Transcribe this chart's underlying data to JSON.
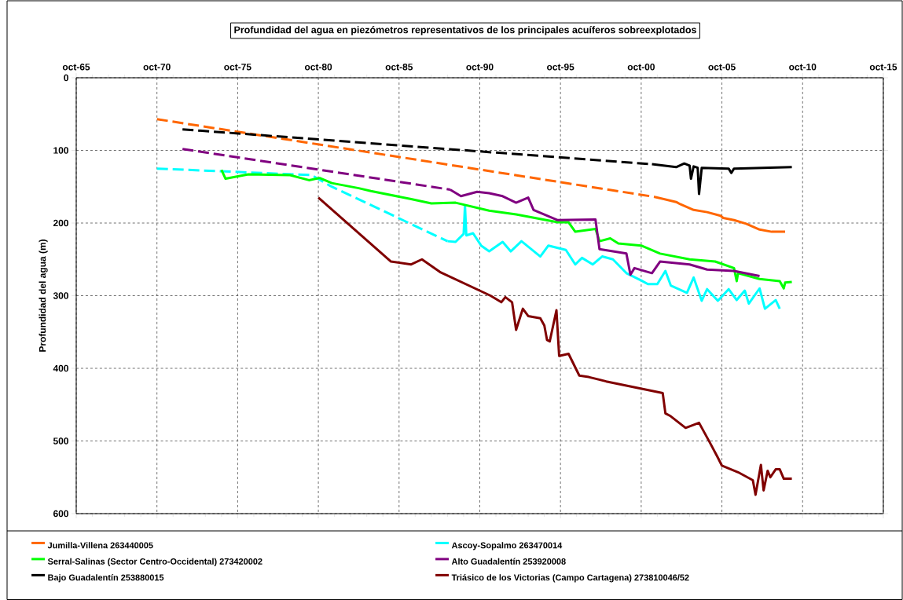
{
  "chart_data": {
    "type": "line",
    "title": "Profundidad del agua en piezómetros representativos de los principales acuíferos sobreexplotados",
    "ylabel": "Profundidad del agua (m)",
    "xlim": [
      "1965-10",
      "2015-10"
    ],
    "ylim": [
      600,
      0
    ],
    "xticks": [
      {
        "value": "1965-10",
        "label": "oct-65"
      },
      {
        "value": "1966-10",
        "label": null
      },
      {
        "value": "1967-10",
        "label": null
      },
      {
        "value": "1968-10",
        "label": null
      },
      {
        "value": "1969-10",
        "label": null
      },
      {
        "value": "1970-10",
        "label": "oct-70"
      },
      {
        "value": "1971-10",
        "label": null
      },
      {
        "value": "1972-10",
        "label": null
      },
      {
        "value": "1973-10",
        "label": null
      },
      {
        "value": "1974-10",
        "label": null
      },
      {
        "value": "1975-10",
        "label": "oct-75"
      },
      {
        "value": "1976-10",
        "label": null
      },
      {
        "value": "1977-10",
        "label": null
      },
      {
        "value": "1978-10",
        "label": null
      },
      {
        "value": "1979-10",
        "label": null
      },
      {
        "value": "1980-10",
        "label": "oct-80"
      },
      {
        "value": "1981-10",
        "label": null
      },
      {
        "value": "1982-10",
        "label": null
      },
      {
        "value": "1983-10",
        "label": null
      },
      {
        "value": "1984-10",
        "label": null
      },
      {
        "value": "1985-10",
        "label": "oct-85"
      },
      {
        "value": "1986-10",
        "label": null
      },
      {
        "value": "1987-10",
        "label": null
      },
      {
        "value": "1988-10",
        "label": null
      },
      {
        "value": "1989-10",
        "label": null
      },
      {
        "value": "1990-10",
        "label": "oct-90"
      },
      {
        "value": "1991-10",
        "label": null
      },
      {
        "value": "1992-10",
        "label": null
      },
      {
        "value": "1993-10",
        "label": null
      },
      {
        "value": "1994-10",
        "label": null
      },
      {
        "value": "1995-10",
        "label": "oct-95"
      },
      {
        "value": "1996-10",
        "label": null
      },
      {
        "value": "1997-10",
        "label": null
      },
      {
        "value": "1998-10",
        "label": null
      },
      {
        "value": "1999-10",
        "label": null
      },
      {
        "value": "2000-10",
        "label": "oct-00"
      },
      {
        "value": "2001-10",
        "label": null
      },
      {
        "value": "2002-10",
        "label": null
      },
      {
        "value": "2003-10",
        "label": null
      },
      {
        "value": "2004-10",
        "label": null
      },
      {
        "value": "2005-10",
        "label": "oct-05"
      },
      {
        "value": "2006-10",
        "label": null
      },
      {
        "value": "2007-10",
        "label": null
      },
      {
        "value": "2008-10",
        "label": null
      },
      {
        "value": "2009-10",
        "label": null
      },
      {
        "value": "2010-10",
        "label": "oct-10"
      },
      {
        "value": "2011-10",
        "label": null
      },
      {
        "value": "2012-10",
        "label": null
      },
      {
        "value": "2013-10",
        "label": null
      },
      {
        "value": "2014-10",
        "label": null
      },
      {
        "value": "2015-10",
        "label": "oct-15"
      }
    ],
    "yticks": [
      0,
      100,
      200,
      300,
      400,
      500,
      600
    ],
    "grid": true,
    "legend": "bottom",
    "series": [
      {
        "name": "Jumilla-Villena 263440005",
        "color": "#ff6600",
        "x": [
          "2001-08",
          "2002-12",
          "2003-03",
          "2004-01",
          "2004-11",
          "2005-09",
          "2005-11",
          "2006-07",
          "2007-04",
          "2008-02",
          "2008-11",
          "2009-09"
        ],
        "values": [
          164,
          171,
          174,
          182,
          185,
          190,
          193,
          196,
          201,
          209,
          212,
          212
        ]
      },
      {
        "name": "Ascoy-Sopalmo 263470014",
        "color": "#00ffff",
        "x": [
          "1988-10",
          "1989-04",
          "1989-10",
          "1989-11",
          "1989-12",
          "1990-05",
          "1990-11",
          "1991-05",
          "1992-03",
          "1992-09",
          "1993-05",
          "1994-07",
          "1995-01",
          "1996-02",
          "1996-09",
          "1997-02",
          "1997-10",
          "1998-05",
          "1999-01",
          "1999-11",
          "2000-10",
          "2001-03",
          "2001-10",
          "2002-04",
          "2002-08",
          "2003-08",
          "2004-01",
          "2004-07",
          "2004-11",
          "2005-07",
          "2006-03",
          "2006-09",
          "2007-03",
          "2007-06",
          "2008-02",
          "2008-06",
          "2009-02",
          "2009-05"
        ],
        "values": [
          225,
          226,
          215,
          176,
          217,
          214,
          231,
          239,
          226,
          239,
          225,
          246,
          231,
          237,
          257,
          248,
          257,
          246,
          250,
          269,
          279,
          284,
          284,
          266,
          286,
          296,
          275,
          307,
          291,
          307,
          291,
          306,
          293,
          311,
          290,
          318,
          306,
          318
        ]
      },
      {
        "name": "Serral-Salinas (Sector Centro-Occidental) 273420002",
        "color": "#00ff00",
        "x": [
          "1974-10",
          "1975-01",
          "1976-06",
          "1979-01",
          "1980-03",
          "1980-11",
          "1981-08",
          "1983-04",
          "1984-01",
          "1986-07",
          "1987-10",
          "1989-04",
          "1991-05",
          "1993-01",
          "1995-08",
          "1996-04",
          "1996-09",
          "1997-12",
          "1998-03",
          "1998-11",
          "1999-05",
          "2000-10",
          "2001-12",
          "2003-10",
          "2005-05",
          "2006-07",
          "2006-09",
          "2006-10",
          "2008-02",
          "2009-05",
          "2009-08",
          "2009-09",
          "2010-02"
        ],
        "values": [
          127,
          139,
          133,
          134,
          141,
          138,
          145,
          152,
          156,
          167,
          173,
          172,
          183,
          188,
          199,
          199,
          212,
          208,
          225,
          221,
          228,
          231,
          242,
          250,
          253,
          262,
          280,
          269,
          277,
          280,
          290,
          282,
          281
        ]
      },
      {
        "name": "Alto Guadalentín 253920008",
        "color": "#800080",
        "x": [
          "1988-12",
          "1989-08",
          "1990-08",
          "1991-05",
          "1992-03",
          "1993-01",
          "1993-10",
          "1994-02",
          "1995-08",
          "1997-12",
          "1998-03",
          "1999-01",
          "1999-11",
          "2000-02",
          "2000-05",
          "2001-06",
          "2001-12",
          "2003-10",
          "2004-11",
          "2006-07",
          "2008-02"
        ],
        "values": [
          154,
          163,
          157,
          159,
          163,
          172,
          165,
          182,
          196,
          195,
          236,
          239,
          242,
          271,
          262,
          269,
          253,
          257,
          264,
          266,
          273
        ]
      },
      {
        "name": "Bajo Guadalentín 253880015",
        "color": "#000000",
        "x": [
          "2001-06",
          "2002-12",
          "2003-06",
          "2003-10",
          "2003-11",
          "2004-01",
          "2004-04",
          "2004-05",
          "2004-07",
          "2006-03",
          "2006-05",
          "2006-07",
          "2010-02"
        ],
        "values": [
          119,
          123,
          118,
          121,
          139,
          122,
          124,
          160,
          124,
          125,
          131,
          125,
          123
        ]
      },
      {
        "name": "Triásico de los Victorias (Campo Cartagena) 273810046/52",
        "color": "#800000",
        "x": [
          "1980-10",
          "1985-04",
          "1986-07",
          "1987-03",
          "1988-05",
          "1991-06",
          "1992-02",
          "1992-05",
          "1992-10",
          "1993-01",
          "1993-06",
          "1993-10",
          "1994-07",
          "1994-10",
          "1994-12",
          "1995-02",
          "1995-07",
          "1995-09",
          "1996-04",
          "1996-12",
          "1997-07",
          "1998-08",
          "2002-02",
          "2002-04",
          "2002-08",
          "2003-07",
          "2004-05",
          "2005-01",
          "2005-07",
          "2005-10",
          "2006-10",
          "2007-09",
          "2007-11",
          "2008-03",
          "2008-05",
          "2008-08",
          "2008-10",
          "2009-02",
          "2009-05",
          "2009-08",
          "2010-02"
        ],
        "values": [
          165,
          253,
          257,
          250,
          268,
          300,
          309,
          302,
          309,
          347,
          318,
          328,
          331,
          341,
          361,
          363,
          320,
          383,
          380,
          410,
          412,
          418,
          434,
          462,
          466,
          482,
          475,
          502,
          523,
          534,
          543,
          554,
          574,
          533,
          568,
          541,
          550,
          539,
          539,
          552,
          552
        ]
      },
      {
        "color": "#ff6600",
        "line_style": "dashed",
        "x": [
          "1970-10",
          "2001-08"
        ],
        "values": [
          57,
          164
        ]
      },
      {
        "color": "#00ffff",
        "line_style": "dashed",
        "x": [
          "1970-10",
          "1980-05",
          "1981-07",
          "1988-10"
        ],
        "values": [
          125,
          134,
          149,
          225
        ]
      },
      {
        "color": "#800080",
        "line_style": "dashed",
        "x": [
          "1972-05",
          "1988-12"
        ],
        "values": [
          98,
          154
        ]
      },
      {
        "color": "#000000",
        "line_style": "dashed",
        "x": [
          "1972-05",
          "2001-06"
        ],
        "values": [
          71,
          119
        ]
      }
    ]
  }
}
